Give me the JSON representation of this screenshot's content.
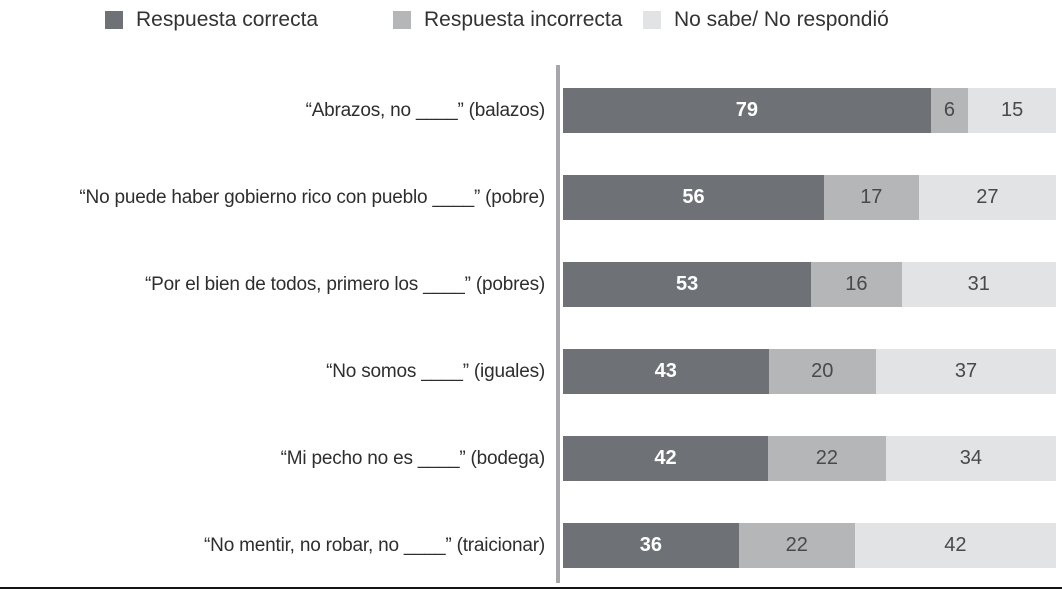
{
  "chart_data": {
    "type": "bar",
    "orientation": "horizontal",
    "stacked": true,
    "values_unit": "percent",
    "title": "",
    "xlabel": "",
    "ylabel": "",
    "xlim": [
      0,
      100
    ],
    "grid": false,
    "legend_position": "top",
    "categories": [
      "“Abrazos, no ____” (balazos)",
      "“No puede haber gobierno rico con pueblo ____” (pobre)",
      "“Por el bien de todos, primero los ____” (pobres)",
      "“No somos ____” (iguales)",
      "“Mi pecho no es ____” (bodega)",
      "“No mentir, no robar, no ____” (traicionar)"
    ],
    "series": [
      {
        "name": "Respuesta correcta",
        "color": "#6e7276",
        "value_text_color": "#ffffff",
        "values": [
          79,
          56,
          53,
          43,
          42,
          36
        ]
      },
      {
        "name": "Respuesta incorrecta",
        "color": "#b4b6b8",
        "value_text_color": "#47494b",
        "values": [
          6,
          17,
          16,
          20,
          22,
          22
        ]
      },
      {
        "name": "No sabe/ No respondió",
        "color": "#e2e3e5",
        "value_text_color": "#47494b",
        "values": [
          15,
          27,
          31,
          37,
          34,
          42
        ]
      }
    ],
    "colors": {
      "axis_line": "#a7a7ab",
      "bottom_rule": "#141414",
      "category_label": "#2e2e2e",
      "legend_text": "#333333",
      "background": "#ffffff"
    }
  }
}
